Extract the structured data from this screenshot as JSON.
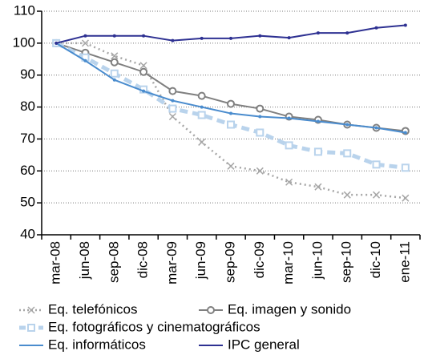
{
  "chart_data": {
    "type": "line",
    "categories": [
      "mar-08",
      "jun-08",
      "sep-08",
      "dic-08",
      "mar-09",
      "jun-09",
      "sep-09",
      "dic-09",
      "mar-10",
      "jun-10",
      "sep-10",
      "dic-10",
      "ene-11"
    ],
    "ylim": [
      40,
      110
    ],
    "yticks": [
      40,
      50,
      60,
      70,
      80,
      90,
      100,
      110
    ],
    "grid": true,
    "series": [
      {
        "name": "Eq. telefónicos",
        "color": "#a6a6a6",
        "dash": "dotted",
        "marker": "x",
        "values": [
          100,
          100,
          96,
          93,
          77,
          69,
          61.5,
          60,
          56.5,
          55,
          52.5,
          52.5,
          51.5
        ]
      },
      {
        "name": "Eq. imagen y sonido",
        "color": "#808080",
        "dash": "solid",
        "marker": "circle",
        "values": [
          100,
          97,
          94,
          91,
          85,
          83.5,
          81,
          79.5,
          77,
          76,
          74.5,
          73.5,
          72.5
        ]
      },
      {
        "name": "Eq. fotográficos y cinematográficos",
        "color": "#b9d3ec",
        "dash": "dashed",
        "marker": "square",
        "values": [
          100,
          95.5,
          90.5,
          85.5,
          79.5,
          77.5,
          74.5,
          72,
          68,
          66,
          65.5,
          62,
          61
        ]
      },
      {
        "name": "Eq. informáticos",
        "color": "#4a8cce",
        "dash": "solid",
        "marker": "none",
        "values": [
          100,
          94.5,
          88.5,
          85,
          82,
          80,
          78,
          77,
          76.5,
          75.5,
          74.5,
          73.5,
          72
        ]
      },
      {
        "name": "IPC general",
        "color": "#2e3192",
        "dash": "solid",
        "marker": "none",
        "values": [
          100,
          102.3,
          102.3,
          102.3,
          100.8,
          101.5,
          101.5,
          102.3,
          101.7,
          103.2,
          103.2,
          104.8,
          105.6
        ]
      }
    ]
  }
}
